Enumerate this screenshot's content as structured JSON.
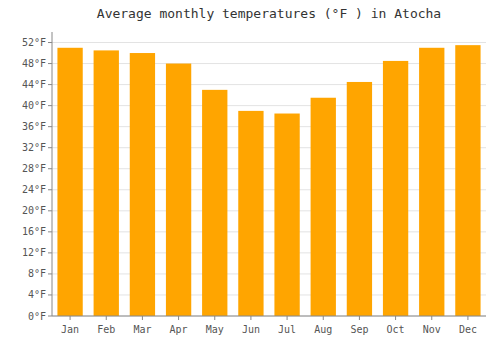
{
  "chart_data": {
    "type": "bar",
    "title": "Average monthly temperatures (°F ) in Atocha",
    "categories": [
      "Jan",
      "Feb",
      "Mar",
      "Apr",
      "May",
      "Jun",
      "Jul",
      "Aug",
      "Sep",
      "Oct",
      "Nov",
      "Dec"
    ],
    "values": [
      51.0,
      50.5,
      50.0,
      48.0,
      43.0,
      39.0,
      38.5,
      41.5,
      44.5,
      48.5,
      51.0,
      51.5
    ],
    "color": "#FFA500",
    "ylim": [
      0,
      54
    ],
    "yticks": [
      {
        "value": 0,
        "label": "0°F"
      },
      {
        "value": 4,
        "label": "4°F"
      },
      {
        "value": 8,
        "label": "8°F"
      },
      {
        "value": 12,
        "label": "12°F"
      },
      {
        "value": 16,
        "label": "16°F"
      },
      {
        "value": 20,
        "label": "20°F"
      },
      {
        "value": 24,
        "label": "24°F"
      },
      {
        "value": 28,
        "label": "28°F"
      },
      {
        "value": 32,
        "label": "32°F"
      },
      {
        "value": 36,
        "label": "36°F"
      },
      {
        "value": 40,
        "label": "40°F"
      },
      {
        "value": 44,
        "label": "44°F"
      },
      {
        "value": 48,
        "label": "48°F"
      },
      {
        "value": 52,
        "label": "52°F"
      }
    ],
    "grid": true
  }
}
